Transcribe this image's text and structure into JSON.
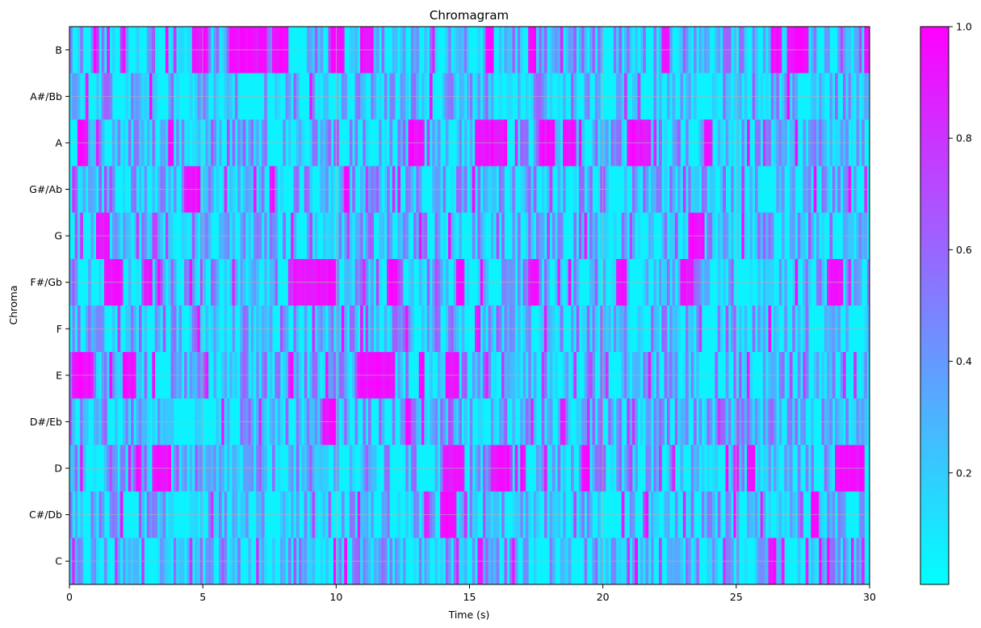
{
  "chart_data": {
    "type": "heatmap",
    "title": "Chromagram",
    "xlabel": "Time (s)",
    "ylabel": "Chroma",
    "xlim": [
      0,
      30
    ],
    "x_ticks": [
      0,
      5,
      10,
      15,
      20,
      25,
      30
    ],
    "y_categories": [
      "C",
      "C#/Db",
      "D",
      "D#/Eb",
      "E",
      "F",
      "F#/Gb",
      "G",
      "G#/Ab",
      "A",
      "A#/Bb",
      "B"
    ],
    "colorbar": {
      "range": [
        0,
        1
      ],
      "ticks": [
        "0.2",
        "0.4",
        "0.6",
        "0.8",
        "1.0"
      ],
      "colormap": "cool",
      "colors": [
        "#00ffff",
        "#ff00ff"
      ]
    },
    "grid": true,
    "high_segments": {
      "B": [
        [
          4.6,
          5.2
        ],
        [
          6.0,
          7.4
        ],
        [
          7.6,
          8.2
        ],
        [
          9.8,
          10.3
        ],
        [
          10.9,
          11.4
        ],
        [
          15.6,
          15.9
        ],
        [
          17.2,
          17.5
        ],
        [
          22.2,
          22.5
        ],
        [
          26.3,
          26.7
        ],
        [
          26.9,
          27.7
        ],
        [
          29.8,
          30.0
        ]
      ],
      "A#/Bb": [],
      "A": [
        [
          0.3,
          0.7
        ],
        [
          12.7,
          13.3
        ],
        [
          15.2,
          16.4
        ],
        [
          17.6,
          18.2
        ],
        [
          18.5,
          19.0
        ],
        [
          20.9,
          21.8
        ],
        [
          23.8,
          24.1
        ]
      ],
      "G#/Ab": [
        [
          4.3,
          4.9
        ],
        [
          7.5,
          7.7
        ],
        [
          10.3,
          10.5
        ]
      ],
      "G": [
        [
          1.0,
          1.5
        ],
        [
          23.2,
          23.8
        ]
      ],
      "F#/Gb": [
        [
          1.3,
          2.0
        ],
        [
          2.8,
          3.1
        ],
        [
          8.4,
          10.0
        ],
        [
          11.9,
          12.3
        ],
        [
          14.5,
          14.8
        ],
        [
          17.2,
          17.6
        ],
        [
          20.5,
          20.9
        ],
        [
          22.9,
          23.4
        ],
        [
          28.4,
          29.0
        ]
      ],
      "F": [],
      "E": [
        [
          0.1,
          0.9
        ],
        [
          2.0,
          2.5
        ],
        [
          10.8,
          12.2
        ],
        [
          13.1,
          13.3
        ],
        [
          14.1,
          14.6
        ]
      ],
      "D#/Eb": [
        [
          9.5,
          10.0
        ],
        [
          12.6,
          12.8
        ]
      ],
      "D": [
        [
          3.1,
          3.8
        ],
        [
          14.0,
          14.8
        ],
        [
          15.8,
          16.5
        ],
        [
          16.9,
          17.1
        ],
        [
          19.2,
          19.5
        ],
        [
          25.4,
          25.7
        ],
        [
          28.7,
          29.8
        ]
      ],
      "C#/Db": [
        [
          13.9,
          14.5
        ],
        [
          27.8,
          28.1
        ]
      ],
      "C": [
        [
          26.2,
          26.5
        ]
      ]
    }
  }
}
